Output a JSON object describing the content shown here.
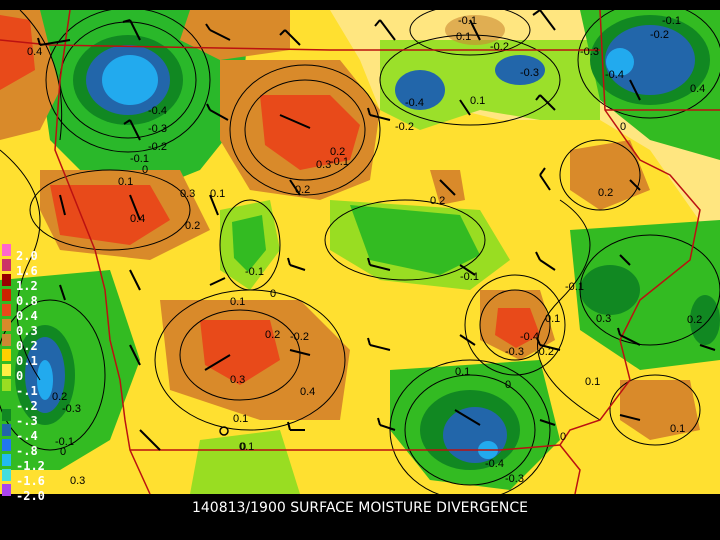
{
  "caption": "140813/1900 SURFACE MOISTURE DIVERGENCE",
  "legend": {
    "labels": [
      "2.0",
      "1.6",
      "1.2",
      "0.8",
      "0.4",
      "0.3",
      "0.2",
      "0.1",
      "0",
      "-.1",
      "-.2",
      "-.3",
      "-.4",
      "-.8",
      "-1.2",
      "-1.6",
      "-2.0"
    ],
    "colors": [
      "#ff66cc",
      "#cc3366",
      "#990000",
      "#cc2200",
      "#e84a1a",
      "#d98a2a",
      "#cc8833",
      "#ffd000",
      "#ffee44",
      "#99dd22",
      "#33bb22",
      "#118822",
      "#2266aa",
      "#2277ee",
      "#22bbee",
      "#44dddd",
      "#aa44ee"
    ]
  },
  "contour_labels": [
    "0.4",
    "-0.4",
    "-0.3",
    "-0.2",
    "-0.1",
    "0",
    "0.1",
    "0.3",
    "0.2",
    "0.4",
    "0.1",
    "-0.1",
    "-0.2",
    "-0.3",
    "-0.4",
    "0.2",
    "-0.1",
    "-0.2",
    "0.1",
    "-0.3",
    "-0.1",
    "-0.2",
    "-0.4",
    "0.2",
    "0.1",
    "0",
    "-0.1",
    "0.2",
    "-0.1",
    "-0.2",
    "0.2",
    "0.3",
    "0.4",
    "0.3",
    "0.2",
    "-0.1",
    "0.1",
    "0",
    "-0.4",
    "-0.2",
    "-0.3",
    "0.1",
    "0.1",
    "0",
    "0",
    "0.1",
    "0.1",
    "-0.4",
    "-0.3",
    "0.1",
    "0.2",
    "-0.3",
    "-0.1",
    "0",
    "0.3",
    "0.1",
    "0",
    "0.4",
    "0.3",
    "0.2"
  ]
}
